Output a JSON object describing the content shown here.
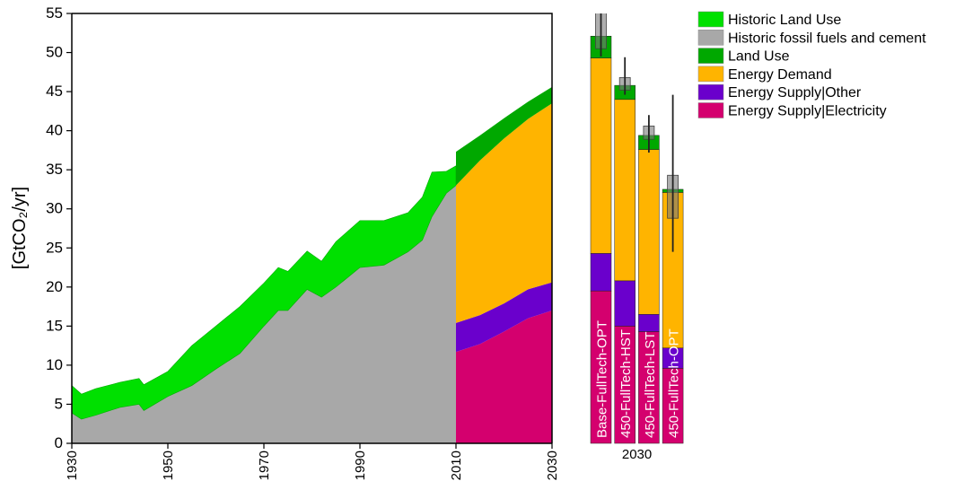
{
  "chart_data": [
    {
      "type": "area",
      "x": [
        1930,
        1932,
        1935,
        1940,
        1944,
        1945,
        1950,
        1955,
        1960,
        1965,
        1970,
        1973,
        1975,
        1979,
        1982,
        1985,
        1990,
        1995,
        2000,
        2003,
        2005,
        2008,
        2010
      ],
      "series": [
        {
          "name": "Historic fossil fuels and cement",
          "color": "#a8a8a8",
          "values": [
            3.9,
            3.1,
            3.6,
            4.6,
            5.0,
            4.2,
            6.0,
            7.4,
            9.5,
            11.5,
            15.0,
            17.0,
            17.0,
            19.7,
            18.7,
            20.0,
            22.5,
            22.8,
            24.5,
            26.0,
            29.0,
            32.0,
            33.0
          ]
        },
        {
          "name": "Historic Land Use",
          "color": "#00e000",
          "values": [
            3.5,
            3.2,
            3.4,
            3.2,
            3.3,
            3.3,
            3.2,
            5.1,
            5.5,
            6.0,
            5.5,
            5.5,
            5.0,
            4.9,
            4.6,
            5.8,
            6.0,
            5.7,
            5.0,
            5.5,
            5.7,
            2.8,
            2.5
          ]
        }
      ],
      "xlim": [
        1930,
        2030
      ],
      "ylim": [
        0,
        55
      ],
      "xticks": [
        1930,
        1950,
        1970,
        1990,
        2010,
        2030
      ],
      "yticks": [
        0,
        5,
        10,
        15,
        20,
        25,
        30,
        35,
        40,
        45,
        50,
        55
      ],
      "y_label": "[GtCO₂/yr]"
    },
    {
      "type": "area",
      "x": [
        2010,
        2015,
        2020,
        2025,
        2030
      ],
      "series": [
        {
          "name": "Energy Supply|Electricity",
          "color": "#d4006e",
          "values": [
            11.7,
            12.7,
            14.3,
            16.0,
            17.0
          ]
        },
        {
          "name": "Energy Supply|Other",
          "color": "#6a00cc",
          "values": [
            3.7,
            3.7,
            3.6,
            3.7,
            3.6
          ]
        },
        {
          "name": "Energy Demand",
          "color": "#ffb400",
          "values": [
            17.6,
            19.8,
            21.1,
            21.8,
            22.9
          ]
        },
        {
          "name": "Land Use",
          "color": "#00a800",
          "values": [
            4.3,
            3.2,
            2.6,
            2.2,
            2.1
          ]
        }
      ]
    },
    {
      "type": "bar",
      "x_label": "2030",
      "categories": [
        "Base-FullTech-OPT",
        "450-FullTech-HST",
        "450-FullTech-LST",
        "450-FullTech-OPT"
      ],
      "series": [
        {
          "color": "#d4006e",
          "values": [
            19.5,
            15.0,
            14.3,
            9.6
          ]
        },
        {
          "color": "#6a00cc",
          "values": [
            4.8,
            5.8,
            2.2,
            2.6
          ]
        },
        {
          "color": "#ffb400",
          "values": [
            25.0,
            23.2,
            21.1,
            19.9
          ]
        },
        {
          "color": "#00a800",
          "values": [
            2.8,
            1.8,
            1.8,
            0.4
          ]
        }
      ],
      "box_low": [
        50.5,
        45.2,
        38.9,
        28.8
      ],
      "box_high": [
        56.0,
        46.8,
        40.6,
        34.3
      ],
      "whisker_low": [
        49.5,
        44.6,
        37.2,
        24.5
      ],
      "whisker_high": [
        58.0,
        49.4,
        42.0,
        44.6
      ]
    }
  ]
}
